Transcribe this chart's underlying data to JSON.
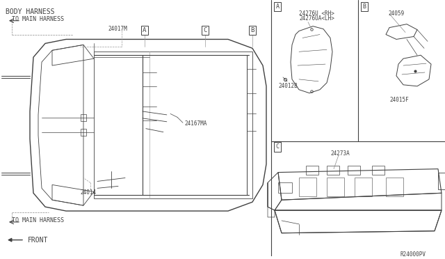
{
  "bg_color": "#ffffff",
  "line_color": "#404040",
  "thin_color": "#606060",
  "part_number_bottom_right": "R24000PV",
  "labels": {
    "main_title": "BODY HARNESS",
    "to_main_harness_top": "TO MAIN HARNESS",
    "to_main_harness_bottom": "TO MAIN HARNESS",
    "front": "FRONT",
    "part_24017M": "24017M",
    "part_24167MA": "24167MA",
    "part_24014": "24014",
    "box_A_label_top": "24276U <RH>",
    "box_A_label_bot": "24276UA<LH>",
    "box_A_part": "24012B",
    "box_B_label": "24059",
    "box_B_part": "24015F",
    "box_C_label": "24273A"
  }
}
